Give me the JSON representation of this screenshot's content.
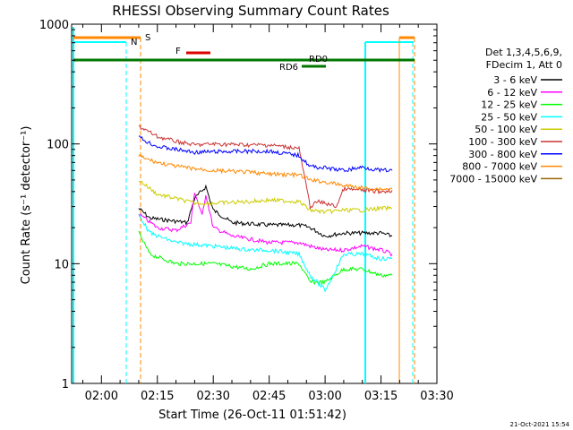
{
  "chart_data": {
    "type": "line",
    "title": "RHESSI Observing Summary Count Rates",
    "xlabel": "Start Time (26-Oct-11 01:51:42)",
    "ylabel": "Count Rate (s⁻¹ detector⁻¹)",
    "y_scale": "log",
    "xlim": [
      "01:52",
      "03:30"
    ],
    "ylim": [
      1,
      1000
    ],
    "x_ticks": [
      "02:00",
      "02:15",
      "02:30",
      "02:45",
      "03:00",
      "03:15",
      "03:30"
    ],
    "y_ticks": [
      "1",
      "10",
      "100",
      "1000"
    ],
    "legend_title": [
      "Det 1,3,4,5,6,9,",
      "FDecim 1, Att 0"
    ],
    "legend_placement": "right",
    "series": [
      {
        "name": "3 - 6 keV",
        "color": "#000000",
        "x": [
          "02:10",
          "02:13",
          "02:18",
          "02:23",
          "02:25",
          "02:28",
          "02:30",
          "02:35",
          "02:45",
          "02:53",
          "02:56",
          "03:00",
          "03:05",
          "03:10",
          "03:15",
          "03:18"
        ],
        "y": [
          29,
          24,
          23,
          22,
          35,
          44,
          28,
          22,
          21,
          21,
          20,
          17,
          18,
          18,
          18,
          17
        ]
      },
      {
        "name": "6 - 12 keV",
        "color": "#ff00ff",
        "x": [
          "02:10",
          "02:15",
          "02:20",
          "02:24",
          "02:25",
          "02:27",
          "02:28",
          "02:30",
          "02:35",
          "02:45",
          "02:53",
          "02:56",
          "03:00",
          "03:05",
          "03:10",
          "03:15",
          "03:18"
        ],
        "y": [
          26,
          20,
          19,
          22,
          40,
          25,
          38,
          20,
          17,
          15,
          15,
          14,
          13,
          13,
          14,
          13,
          12
        ]
      },
      {
        "name": "12 - 25 keV",
        "color": "#00ff00",
        "x": [
          "02:10",
          "02:13",
          "02:20",
          "02:30",
          "02:40",
          "02:45",
          "02:53",
          "02:56",
          "03:00",
          "03:05",
          "03:10",
          "03:15",
          "03:18"
        ],
        "y": [
          18,
          12,
          10,
          10,
          9,
          10,
          10,
          7,
          7,
          9,
          9,
          8,
          8
        ]
      },
      {
        "name": "25 - 50 keV",
        "color": "#00ffff",
        "x": [
          "02:10",
          "02:13",
          "02:20",
          "02:30",
          "02:40",
          "02:45",
          "02:53",
          "02:56",
          "03:00",
          "03:05",
          "03:10",
          "03:15",
          "03:18"
        ],
        "y": [
          26,
          18,
          15,
          14,
          13,
          13,
          12,
          8,
          6,
          12,
          12,
          11,
          11
        ]
      },
      {
        "name": "50 - 100 keV",
        "color": "#cccc00",
        "x": [
          "02:10",
          "02:15",
          "02:20",
          "02:25",
          "02:30",
          "02:40",
          "02:45",
          "02:53",
          "02:56",
          "03:00",
          "03:05",
          "03:10",
          "03:15",
          "03:18"
        ],
        "y": [
          50,
          38,
          35,
          32,
          32,
          33,
          34,
          33,
          28,
          27,
          28,
          28,
          29,
          29
        ]
      },
      {
        "name": "100 - 300 keV",
        "color": "#cc3333",
        "x": [
          "02:10",
          "02:12",
          "02:15",
          "02:20",
          "02:25",
          "02:30",
          "02:40",
          "02:45",
          "02:53",
          "02:56",
          "02:58",
          "03:00",
          "03:03",
          "03:05",
          "03:10",
          "03:15",
          "03:18"
        ],
        "y": [
          140,
          130,
          115,
          105,
          98,
          100,
          98,
          98,
          92,
          30,
          33,
          32,
          30,
          42,
          41,
          40,
          41
        ]
      },
      {
        "name": "300 - 800 keV",
        "color": "#0000ff",
        "x": [
          "02:10",
          "02:12",
          "02:15",
          "02:20",
          "02:25",
          "02:30",
          "02:40",
          "02:45",
          "02:53",
          "02:56",
          "03:00",
          "03:05",
          "03:10",
          "03:15",
          "03:18"
        ],
        "y": [
          115,
          105,
          95,
          90,
          85,
          86,
          87,
          87,
          80,
          65,
          63,
          60,
          64,
          60,
          60
        ]
      },
      {
        "name": "800 - 7000 keV",
        "color": "#ff8800",
        "x": [
          "02:10",
          "02:12",
          "02:15",
          "02:20",
          "02:25",
          "02:30",
          "02:40",
          "02:45",
          "02:53",
          "02:56",
          "03:00",
          "03:05",
          "03:10",
          "03:15",
          "03:18"
        ],
        "y": [
          80,
          75,
          70,
          65,
          62,
          60,
          58,
          56,
          55,
          50,
          48,
          45,
          43,
          42,
          42
        ]
      },
      {
        "name": "7000 - 15000 keV",
        "color": "#996600",
        "x": [],
        "y": []
      }
    ],
    "annotations": [
      {
        "text": "S",
        "color": "#ff8800"
      },
      {
        "text": "N",
        "color": "#00ffff"
      },
      {
        "text": "F",
        "color": "#dd0000"
      },
      {
        "text": "RD0",
        "color": "#007700"
      },
      {
        "text": "RD6",
        "color": "#007700"
      }
    ],
    "footer_date": "21-Oct-2021 15:54"
  }
}
